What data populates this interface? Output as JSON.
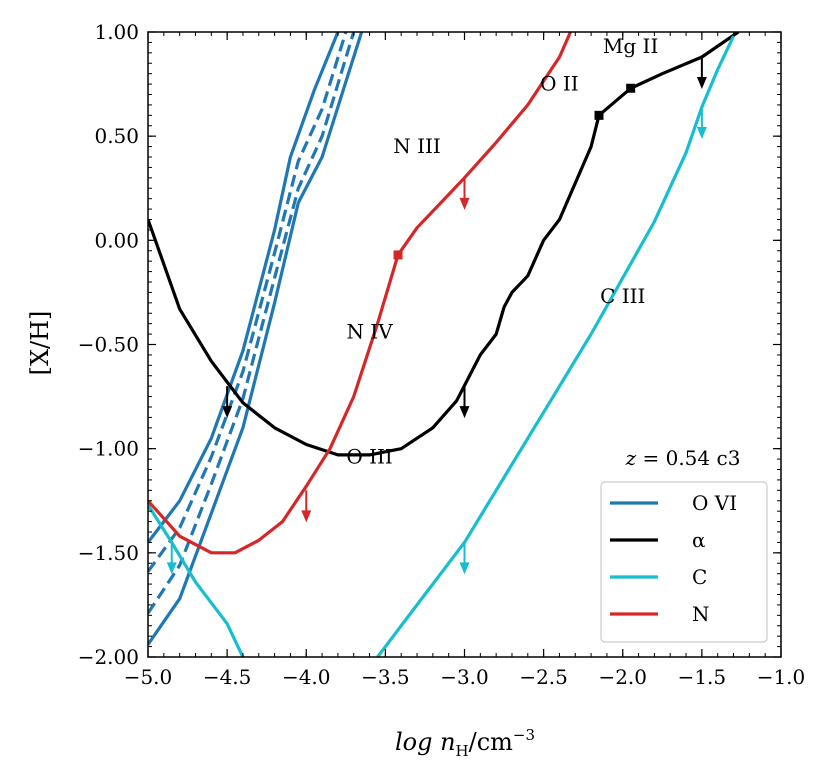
{
  "chart_data": {
    "type": "line",
    "xlabel": "log n_H/cm^-3",
    "xlabel_main": "log n",
    "xlabel_sub": "H",
    "xlabel_unit": "/cm",
    "xlabel_exp": "−3",
    "ylabel": "[X/H]",
    "xlim": [
      -5.0,
      -1.0
    ],
    "ylim": [
      -2.0,
      1.0
    ],
    "x_ticks": [
      -5.0,
      -4.5,
      -4.0,
      -3.5,
      -3.0,
      -2.5,
      -2.0,
      -1.5,
      -1.0
    ],
    "x_tick_labels": [
      "−5.0",
      "−4.5",
      "−4.0",
      "−3.5",
      "−3.0",
      "−2.5",
      "−2.0",
      "−1.5",
      "−1.0"
    ],
    "y_ticks": [
      -2.0,
      -1.5,
      -1.0,
      -0.5,
      0.0,
      0.5,
      1.0
    ],
    "y_tick_labels": [
      "−2.00",
      "−1.50",
      "−1.00",
      "−0.50",
      "0.00",
      "0.50",
      "1.00"
    ],
    "legend_title": "z = 0.54 c3",
    "legend_title_var": "z",
    "legend_title_rest": " = 0.54 c3",
    "legend_position": "lower-right",
    "legend": [
      {
        "label": "O VI",
        "color": "#1f77b4"
      },
      {
        "label": "α",
        "color": "#000000"
      },
      {
        "label": "C",
        "color": "#17becf"
      },
      {
        "label": "N",
        "color": "#d62728"
      }
    ],
    "series": [
      {
        "name": "O VI center",
        "color": "#1f77b4",
        "style": "dashed",
        "points": [
          [
            -5.0,
            -1.59
          ],
          [
            -4.8,
            -1.38
          ],
          [
            -4.6,
            -1.04
          ],
          [
            -4.4,
            -0.63
          ],
          [
            -4.2,
            -0.06
          ],
          [
            -4.05,
            0.38
          ],
          [
            -3.9,
            0.63
          ],
          [
            -3.75,
            1.0
          ]
        ]
      },
      {
        "name": "O VI center (2)",
        "color": "#1f77b4",
        "style": "dashed",
        "points": [
          [
            -5.0,
            -1.79
          ],
          [
            -4.8,
            -1.56
          ],
          [
            -4.6,
            -1.17
          ],
          [
            -4.4,
            -0.76
          ],
          [
            -4.2,
            -0.18
          ],
          [
            -4.05,
            0.25
          ],
          [
            -3.9,
            0.5
          ],
          [
            -3.7,
            1.0
          ]
        ]
      },
      {
        "name": "O VI upper",
        "color": "#1f77b4",
        "style": "solid",
        "points": [
          [
            -5.0,
            -1.45
          ],
          [
            -4.8,
            -1.25
          ],
          [
            -4.6,
            -0.95
          ],
          [
            -4.4,
            -0.53
          ],
          [
            -4.2,
            0.05
          ],
          [
            -4.1,
            0.4
          ],
          [
            -3.95,
            0.72
          ],
          [
            -3.8,
            1.0
          ]
        ]
      },
      {
        "name": "O VI lower",
        "color": "#1f77b4",
        "style": "solid",
        "points": [
          [
            -5.0,
            -1.94
          ],
          [
            -4.8,
            -1.72
          ],
          [
            -4.6,
            -1.31
          ],
          [
            -4.4,
            -0.9
          ],
          [
            -4.2,
            -0.3
          ],
          [
            -4.05,
            0.18
          ],
          [
            -3.9,
            0.4
          ],
          [
            -3.65,
            1.0
          ]
        ]
      },
      {
        "name": "alpha",
        "color": "#000000",
        "style": "solid",
        "points": [
          [
            -5.0,
            0.1
          ],
          [
            -4.8,
            -0.33
          ],
          [
            -4.6,
            -0.58
          ],
          [
            -4.4,
            -0.78
          ],
          [
            -4.2,
            -0.9
          ],
          [
            -4.0,
            -0.98
          ],
          [
            -3.8,
            -1.03
          ],
          [
            -3.6,
            -1.03
          ],
          [
            -3.4,
            -1.0
          ],
          [
            -3.2,
            -0.9
          ],
          [
            -3.05,
            -0.77
          ],
          [
            -2.9,
            -0.55
          ],
          [
            -2.8,
            -0.45
          ],
          [
            -2.75,
            -0.32
          ],
          [
            -2.7,
            -0.25
          ],
          [
            -2.6,
            -0.17
          ],
          [
            -2.5,
            0.0
          ],
          [
            -2.4,
            0.1
          ],
          [
            -2.2,
            0.45
          ],
          [
            -2.15,
            0.6
          ],
          [
            -1.95,
            0.73
          ],
          [
            -1.75,
            0.8
          ],
          [
            -1.5,
            0.88
          ],
          [
            -1.27,
            1.0
          ]
        ]
      },
      {
        "name": "C (left)",
        "color": "#17becf",
        "style": "solid",
        "points": [
          [
            -5.0,
            -1.27
          ],
          [
            -4.85,
            -1.45
          ],
          [
            -4.7,
            -1.64
          ],
          [
            -4.5,
            -1.84
          ],
          [
            -4.4,
            -2.0
          ]
        ]
      },
      {
        "name": "C (right)",
        "color": "#17becf",
        "style": "solid",
        "points": [
          [
            -3.55,
            -2.0
          ],
          [
            -3.3,
            -1.75
          ],
          [
            -3.0,
            -1.45
          ],
          [
            -2.8,
            -1.2
          ],
          [
            -2.6,
            -0.95
          ],
          [
            -2.4,
            -0.7
          ],
          [
            -2.2,
            -0.45
          ],
          [
            -2.0,
            -0.18
          ],
          [
            -1.8,
            0.09
          ],
          [
            -1.6,
            0.42
          ],
          [
            -1.5,
            0.64
          ],
          [
            -1.4,
            0.82
          ],
          [
            -1.3,
            0.98
          ]
        ]
      },
      {
        "name": "N",
        "color": "#d62728",
        "style": "solid",
        "points": [
          [
            -5.0,
            -1.25
          ],
          [
            -4.8,
            -1.42
          ],
          [
            -4.6,
            -1.5
          ],
          [
            -4.45,
            -1.5
          ],
          [
            -4.3,
            -1.44
          ],
          [
            -4.15,
            -1.35
          ],
          [
            -4.0,
            -1.18
          ],
          [
            -3.85,
            -1.0
          ],
          [
            -3.7,
            -0.75
          ],
          [
            -3.55,
            -0.4
          ],
          [
            -3.42,
            -0.07
          ],
          [
            -3.3,
            0.06
          ],
          [
            -3.1,
            0.22
          ],
          [
            -3.0,
            0.3
          ],
          [
            -2.8,
            0.47
          ],
          [
            -2.6,
            0.65
          ],
          [
            -2.4,
            0.88
          ],
          [
            -2.33,
            1.0
          ]
        ]
      }
    ],
    "markers": [
      {
        "series": "N",
        "x": -3.42,
        "y": -0.07,
        "color": "#d62728"
      },
      {
        "series": "alpha",
        "x": -2.15,
        "y": 0.6,
        "color": "#000000"
      },
      {
        "series": "alpha",
        "x": -1.95,
        "y": 0.73,
        "color": "#000000"
      }
    ],
    "arrows": [
      {
        "x": -4.5,
        "y": -0.7,
        "color": "#000000"
      },
      {
        "x": -3.0,
        "y": -0.7,
        "color": "#000000"
      },
      {
        "x": -1.5,
        "y": 0.88,
        "color": "#000000"
      },
      {
        "x": -3.0,
        "y": 0.3,
        "color": "#d62728"
      },
      {
        "x": -4.0,
        "y": -1.2,
        "color": "#d62728"
      },
      {
        "x": -4.85,
        "y": -1.45,
        "color": "#17becf"
      },
      {
        "x": -3.0,
        "y": -1.45,
        "color": "#17becf"
      },
      {
        "x": -1.5,
        "y": 0.64,
        "color": "#17becf"
      }
    ],
    "annotations": [
      {
        "text": "Mg II",
        "x": -1.95,
        "y": 0.9
      },
      {
        "text": "O II",
        "x": -2.4,
        "y": 0.72
      },
      {
        "text": "N III",
        "x": -3.3,
        "y": 0.42
      },
      {
        "text": "C III",
        "x": -2.0,
        "y": -0.3
      },
      {
        "text": "N IV",
        "x": -3.6,
        "y": -0.47
      },
      {
        "text": "O III",
        "x": -3.6,
        "y": -1.07
      }
    ]
  }
}
